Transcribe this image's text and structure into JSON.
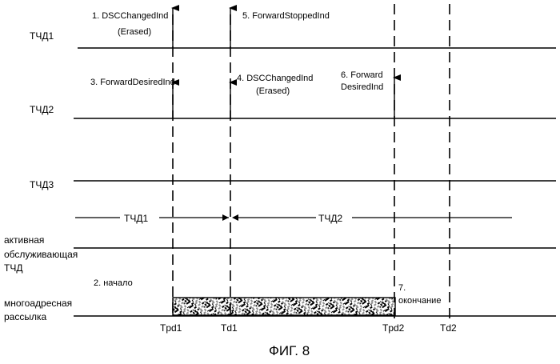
{
  "lanes": [
    {
      "label": "ТЧД1"
    },
    {
      "label": "ТЧД2"
    },
    {
      "label": "ТЧД3"
    }
  ],
  "active_serving": {
    "lines": [
      "активная",
      "обслуживающая",
      "ТЧД"
    ]
  },
  "multicast": {
    "lines": [
      "многоадресная",
      "рассылка"
    ]
  },
  "interval_labels": {
    "first": "ТЧД1",
    "second": "ТЧД2"
  },
  "time_markers": [
    "Tpd1",
    "Td1",
    "Tpd2",
    "Td2"
  ],
  "events": [
    {
      "lines": [
        "1. DSCChangedInd",
        "(Erased)"
      ]
    },
    {
      "lines": [
        "3. ForwardDesiredInd"
      ]
    },
    {
      "lines": [
        "5. ForwardStoppedInd"
      ]
    },
    {
      "lines": [
        "4. DSCChangedInd",
        "(Erased)"
      ]
    },
    {
      "lines": [
        "6. Forward",
        "DesiredInd"
      ]
    },
    {
      "lines": [
        "2. начало"
      ]
    },
    {
      "lines": [
        "7.",
        "окончание"
      ]
    }
  ],
  "figure_caption": "ФИГ. 8"
}
